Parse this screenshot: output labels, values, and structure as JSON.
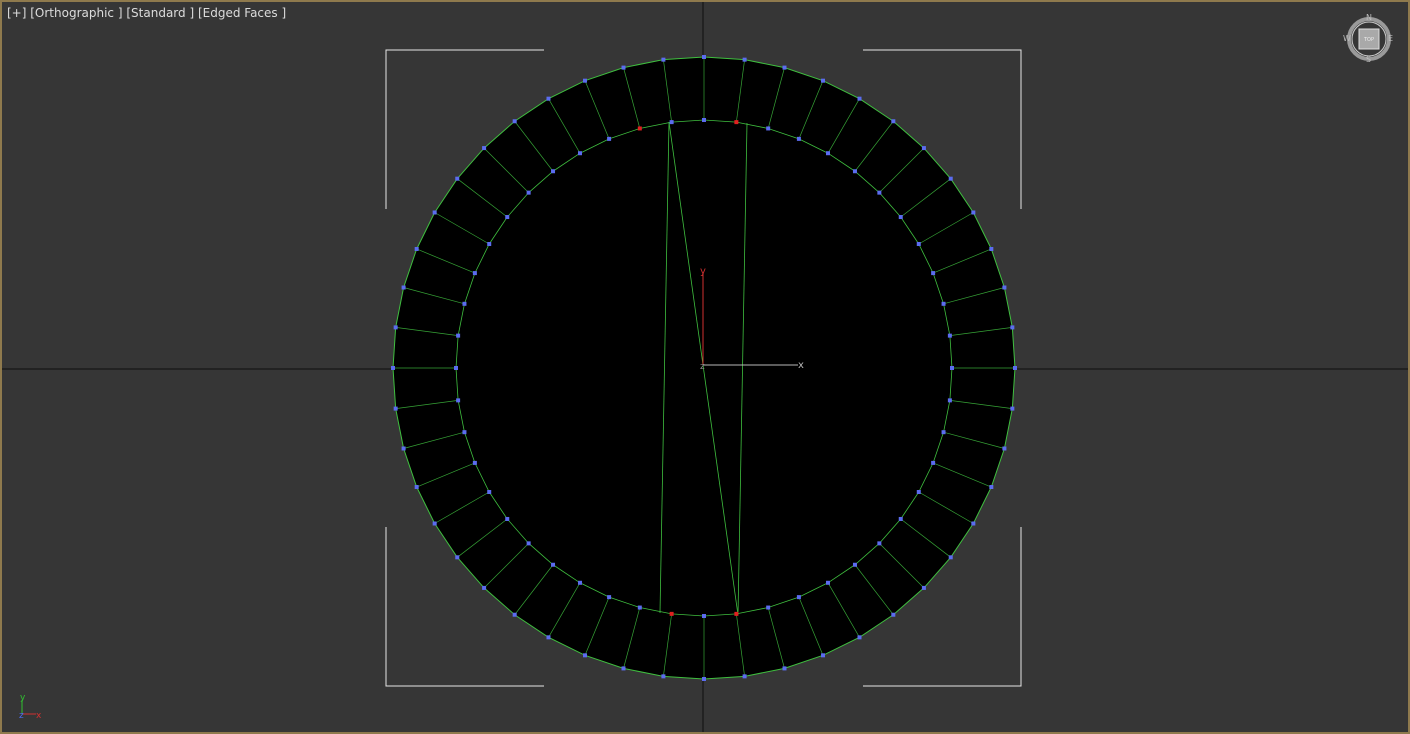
{
  "viewport": {
    "label_plus": "[+]",
    "label_view": "[Orthographic ]",
    "label_shading": "[Standard ]",
    "label_edges": "[Edged Faces ]"
  },
  "gizmo": {
    "x_label": "x",
    "y_label": "y",
    "z_label": "z"
  },
  "viewcube": {
    "north": "N",
    "south": "S",
    "east": "E",
    "west": "W",
    "face": "TOP"
  },
  "tripod": {
    "x_label": "x",
    "y_label": "y",
    "z_label": "z"
  },
  "colors": {
    "viewport_bg": "#363636",
    "viewport_border": "#8f7a4d",
    "mesh_fill": "#000000",
    "mesh_edge": "#3fbf3f",
    "vertex": "#5b6cf0",
    "vertex_selected": "#e02020",
    "axis_x": "#c8c8c8",
    "axis_y": "#d03030",
    "bracket": "#e6e6e6",
    "grid_line": "#0d0d0d"
  },
  "mesh": {
    "segments": 48,
    "selected_vertex_count": 4
  }
}
